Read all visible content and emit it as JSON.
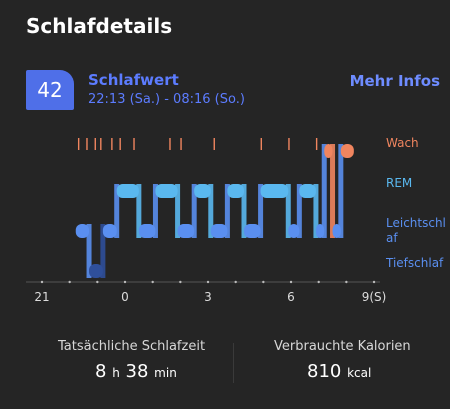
{
  "header": {
    "title": "Schlafdetails"
  },
  "summary": {
    "score": "42",
    "score_label": "Schlafwert",
    "time_range": "22:13 (Sa.) - 08:16 (So.)",
    "more_label": "Mehr Infos"
  },
  "chart": {
    "stages": [
      "Wach",
      "REM",
      "Leichtschlaf",
      "Tiefschlaf"
    ],
    "x_ticks": [
      "21",
      "0",
      "3",
      "6",
      "9(S)"
    ],
    "colors": {
      "awake": "#f0855f",
      "rem": "#5ab8ef",
      "light": "#5a8ff0",
      "deep": "#2f4f9a"
    }
  },
  "chart_data": {
    "type": "timeline",
    "x_ticks": [
      "21",
      "0",
      "3",
      "6",
      "9(S)"
    ],
    "y_categories": [
      "Wach",
      "REM",
      "Leichtschlaf",
      "Tiefschlaf"
    ],
    "start": "22:13",
    "end": "08:16",
    "segments": [
      {
        "stage": "Leichtschlaf",
        "start": 22.22,
        "end": 22.7
      },
      {
        "stage": "Tiefschlaf",
        "start": 22.7,
        "end": 23.2
      },
      {
        "stage": "Leichtschlaf",
        "start": 23.2,
        "end": 23.7
      },
      {
        "stage": "REM",
        "start": 23.7,
        "end": 24.5
      },
      {
        "stage": "Leichtschlaf",
        "start": 24.5,
        "end": 25.1
      },
      {
        "stage": "REM",
        "start": 25.1,
        "end": 25.9
      },
      {
        "stage": "Leichtschlaf",
        "start": 25.9,
        "end": 26.5
      },
      {
        "stage": "REM",
        "start": 26.5,
        "end": 27.1
      },
      {
        "stage": "Leichtschlaf",
        "start": 27.1,
        "end": 27.7
      },
      {
        "stage": "REM",
        "start": 27.7,
        "end": 28.3
      },
      {
        "stage": "Leichtschlaf",
        "start": 28.3,
        "end": 28.9
      },
      {
        "stage": "REM",
        "start": 28.9,
        "end": 29.9
      },
      {
        "stage": "Leichtschlaf",
        "start": 29.9,
        "end": 30.3
      },
      {
        "stage": "REM",
        "start": 30.3,
        "end": 30.9
      },
      {
        "stage": "Leichtschlaf",
        "start": 30.9,
        "end": 31.2
      },
      {
        "stage": "Wach",
        "start": 31.2,
        "end": 31.5
      },
      {
        "stage": "Leichtschlaf",
        "start": 31.5,
        "end": 31.8
      },
      {
        "stage": "Wach",
        "start": 31.8,
        "end": 32.27
      }
    ],
    "wake_marks": [
      22.3,
      22.6,
      22.9,
      23.1,
      23.5,
      23.8,
      24.3,
      25.6,
      26.0,
      27.2,
      28.9,
      29.9,
      30.9
    ]
  },
  "stats": {
    "sleep_label": "Tatsächliche Schlafzeit",
    "sleep_hours": "8",
    "sleep_h_unit": "h",
    "sleep_minutes": "38",
    "sleep_min_unit": "min",
    "cal_label": "Verbrauchte Kalorien",
    "cal_value": "810",
    "cal_unit": "kcal"
  }
}
